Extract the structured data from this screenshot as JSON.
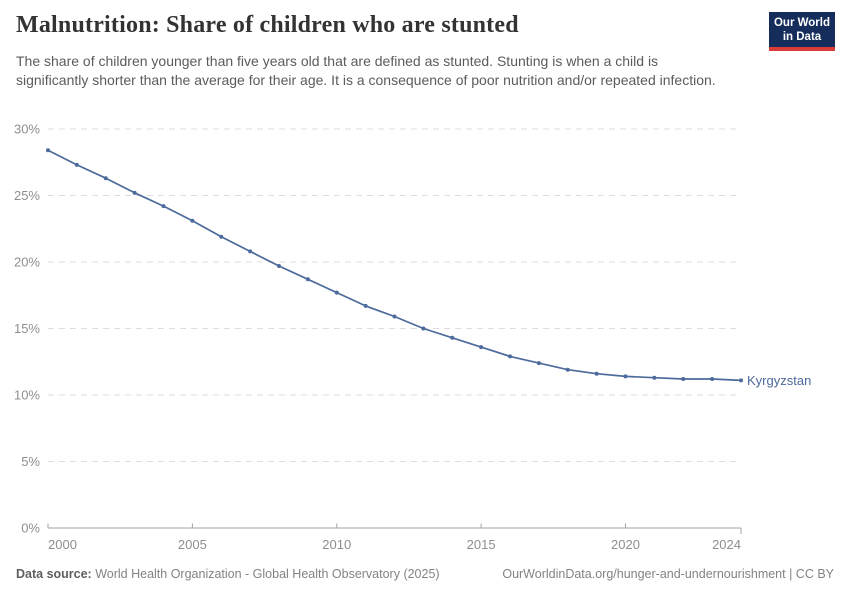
{
  "header": {
    "title": "Malnutrition: Share of children who are stunted",
    "subtitle": "The share of children younger than five years old that are defined as stunted. Stunting is when a child is significantly shorter than the average for their age. It is a consequence of poor nutrition and/or repeated infection.",
    "logo": {
      "line1": "Our World",
      "line2": "in Data",
      "bg_color": "#142d5a",
      "accent_color": "#dc3c37"
    }
  },
  "chart_data": {
    "type": "line",
    "title": "Malnutrition: Share of children who are stunted",
    "xlabel": "",
    "ylabel": "",
    "xlim": [
      2000,
      2024
    ],
    "ylim": [
      0,
      30
    ],
    "grid": "horizontal-dashed",
    "legend_position": "end-of-line",
    "x_ticks": [
      2000,
      2005,
      2010,
      2015,
      2020,
      2024
    ],
    "y_ticks": [
      0,
      5,
      10,
      15,
      20,
      25,
      30
    ],
    "y_tick_suffix": "%",
    "x": [
      2000,
      2001,
      2002,
      2003,
      2004,
      2005,
      2006,
      2007,
      2008,
      2009,
      2010,
      2011,
      2012,
      2013,
      2014,
      2015,
      2016,
      2017,
      2018,
      2019,
      2020,
      2021,
      2022,
      2023,
      2024
    ],
    "series": [
      {
        "name": "Kyrgyzstan",
        "color": "#4c6a9c",
        "values": [
          28.4,
          27.3,
          26.3,
          25.2,
          24.2,
          23.1,
          21.9,
          20.8,
          19.7,
          18.7,
          17.7,
          16.7,
          15.9,
          15.0,
          14.3,
          13.6,
          12.9,
          12.4,
          11.9,
          11.6,
          11.4,
          11.3,
          11.2,
          11.2,
          11.1
        ]
      }
    ],
    "colors": {
      "gridline": "#dedede",
      "axis": "#a3a3a3",
      "tick_label": "#8e8e8e"
    }
  },
  "footer": {
    "source_label": "Data source:",
    "source_text": " World Health Organization - Global Health Observatory (2025)",
    "link": "OurWorldinData.org/hunger-and-undernourishment | CC BY"
  }
}
